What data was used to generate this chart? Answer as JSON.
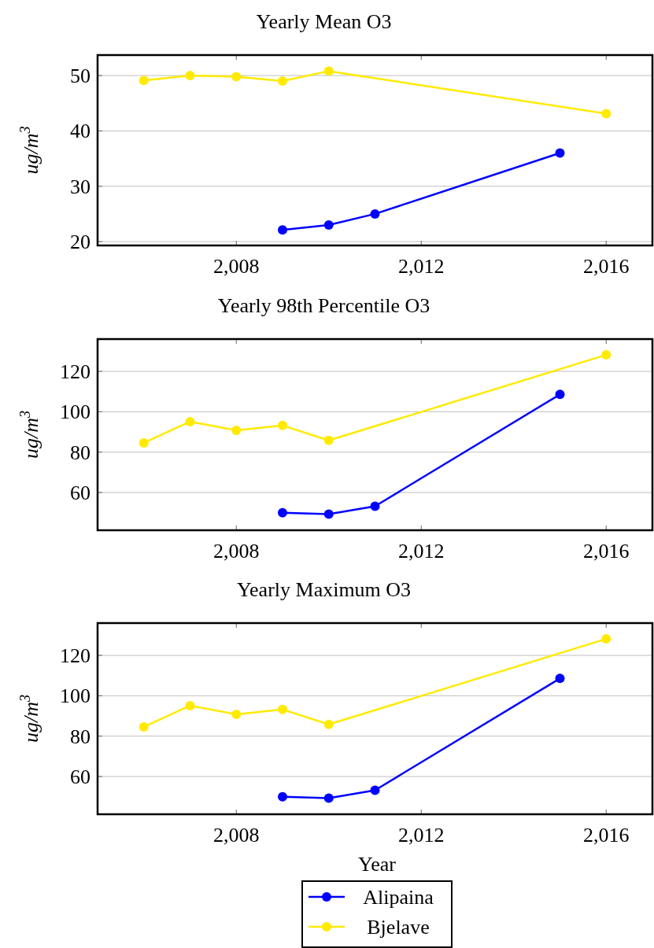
{
  "chart_data": [
    {
      "type": "line",
      "title": "Yearly Mean O3",
      "ylabel": "ug/m$^{3}$",
      "xlim": [
        2005,
        2017
      ],
      "xticks": [
        {
          "value": 2008,
          "label": "2,008"
        },
        {
          "value": 2012,
          "label": "2,012"
        },
        {
          "value": 2016,
          "label": "2,016"
        }
      ],
      "ylim": [
        19.3,
        53.7
      ],
      "yticks": [
        20,
        30,
        40,
        50
      ],
      "grid": "y",
      "marker": "circle",
      "legend": false,
      "series": [
        {
          "color": "#0000ff",
          "x": [
            2009,
            2010,
            2011,
            2015
          ],
          "values": [
            22.1,
            23,
            25,
            36
          ]
        },
        {
          "color": "#ffea00",
          "x": [
            2006,
            2007,
            2008,
            2009,
            2010,
            2016
          ],
          "values": [
            49.1,
            50,
            49.8,
            49,
            50.8,
            43.1
          ]
        }
      ]
    },
    {
      "type": "line",
      "title": "Yearly 98th Percentile O3",
      "ylabel": "ug/m$^{3}$",
      "xlim": [
        2005,
        2017
      ],
      "xticks": [
        {
          "value": 2008,
          "label": "2,008"
        },
        {
          "value": 2012,
          "label": "2,012"
        },
        {
          "value": 2016,
          "label": "2,016"
        }
      ],
      "ylim": [
        41.3,
        136
      ],
      "yticks": [
        60,
        80,
        100,
        120
      ],
      "grid": "y",
      "marker": "circle",
      "legend": false,
      "series": [
        {
          "color": "#0000ff",
          "x": [
            2009,
            2010,
            2011,
            2015
          ],
          "values": [
            50,
            49.3,
            53.2,
            108.6
          ]
        },
        {
          "color": "#ffea00",
          "x": [
            2006,
            2007,
            2008,
            2009,
            2010,
            2016
          ],
          "values": [
            84.6,
            95.1,
            90.8,
            93.2,
            85.8,
            128.2
          ]
        }
      ]
    },
    {
      "type": "line",
      "title": "Yearly Maximum O3",
      "xlabel": "Year",
      "ylabel": "ug/m$^{3}$",
      "xlim": [
        2005,
        2017
      ],
      "xticks": [
        {
          "value": 2008,
          "label": "2,008"
        },
        {
          "value": 2012,
          "label": "2,012"
        },
        {
          "value": 2016,
          "label": "2,016"
        }
      ],
      "ylim": [
        41.3,
        136
      ],
      "yticks": [
        60,
        80,
        100,
        120
      ],
      "grid": "y",
      "marker": "circle",
      "legend": "bottom",
      "series": [
        {
          "name": "Alipaina",
          "color": "#0000ff",
          "x": [
            2009,
            2010,
            2011,
            2015
          ],
          "values": [
            50,
            49.3,
            53.2,
            108.6
          ]
        },
        {
          "name": "Bjelave",
          "color": "#ffea00",
          "x": [
            2006,
            2007,
            2008,
            2009,
            2010,
            2016
          ],
          "values": [
            84.6,
            95.1,
            90.8,
            93.2,
            85.8,
            128.2
          ]
        }
      ]
    }
  ]
}
